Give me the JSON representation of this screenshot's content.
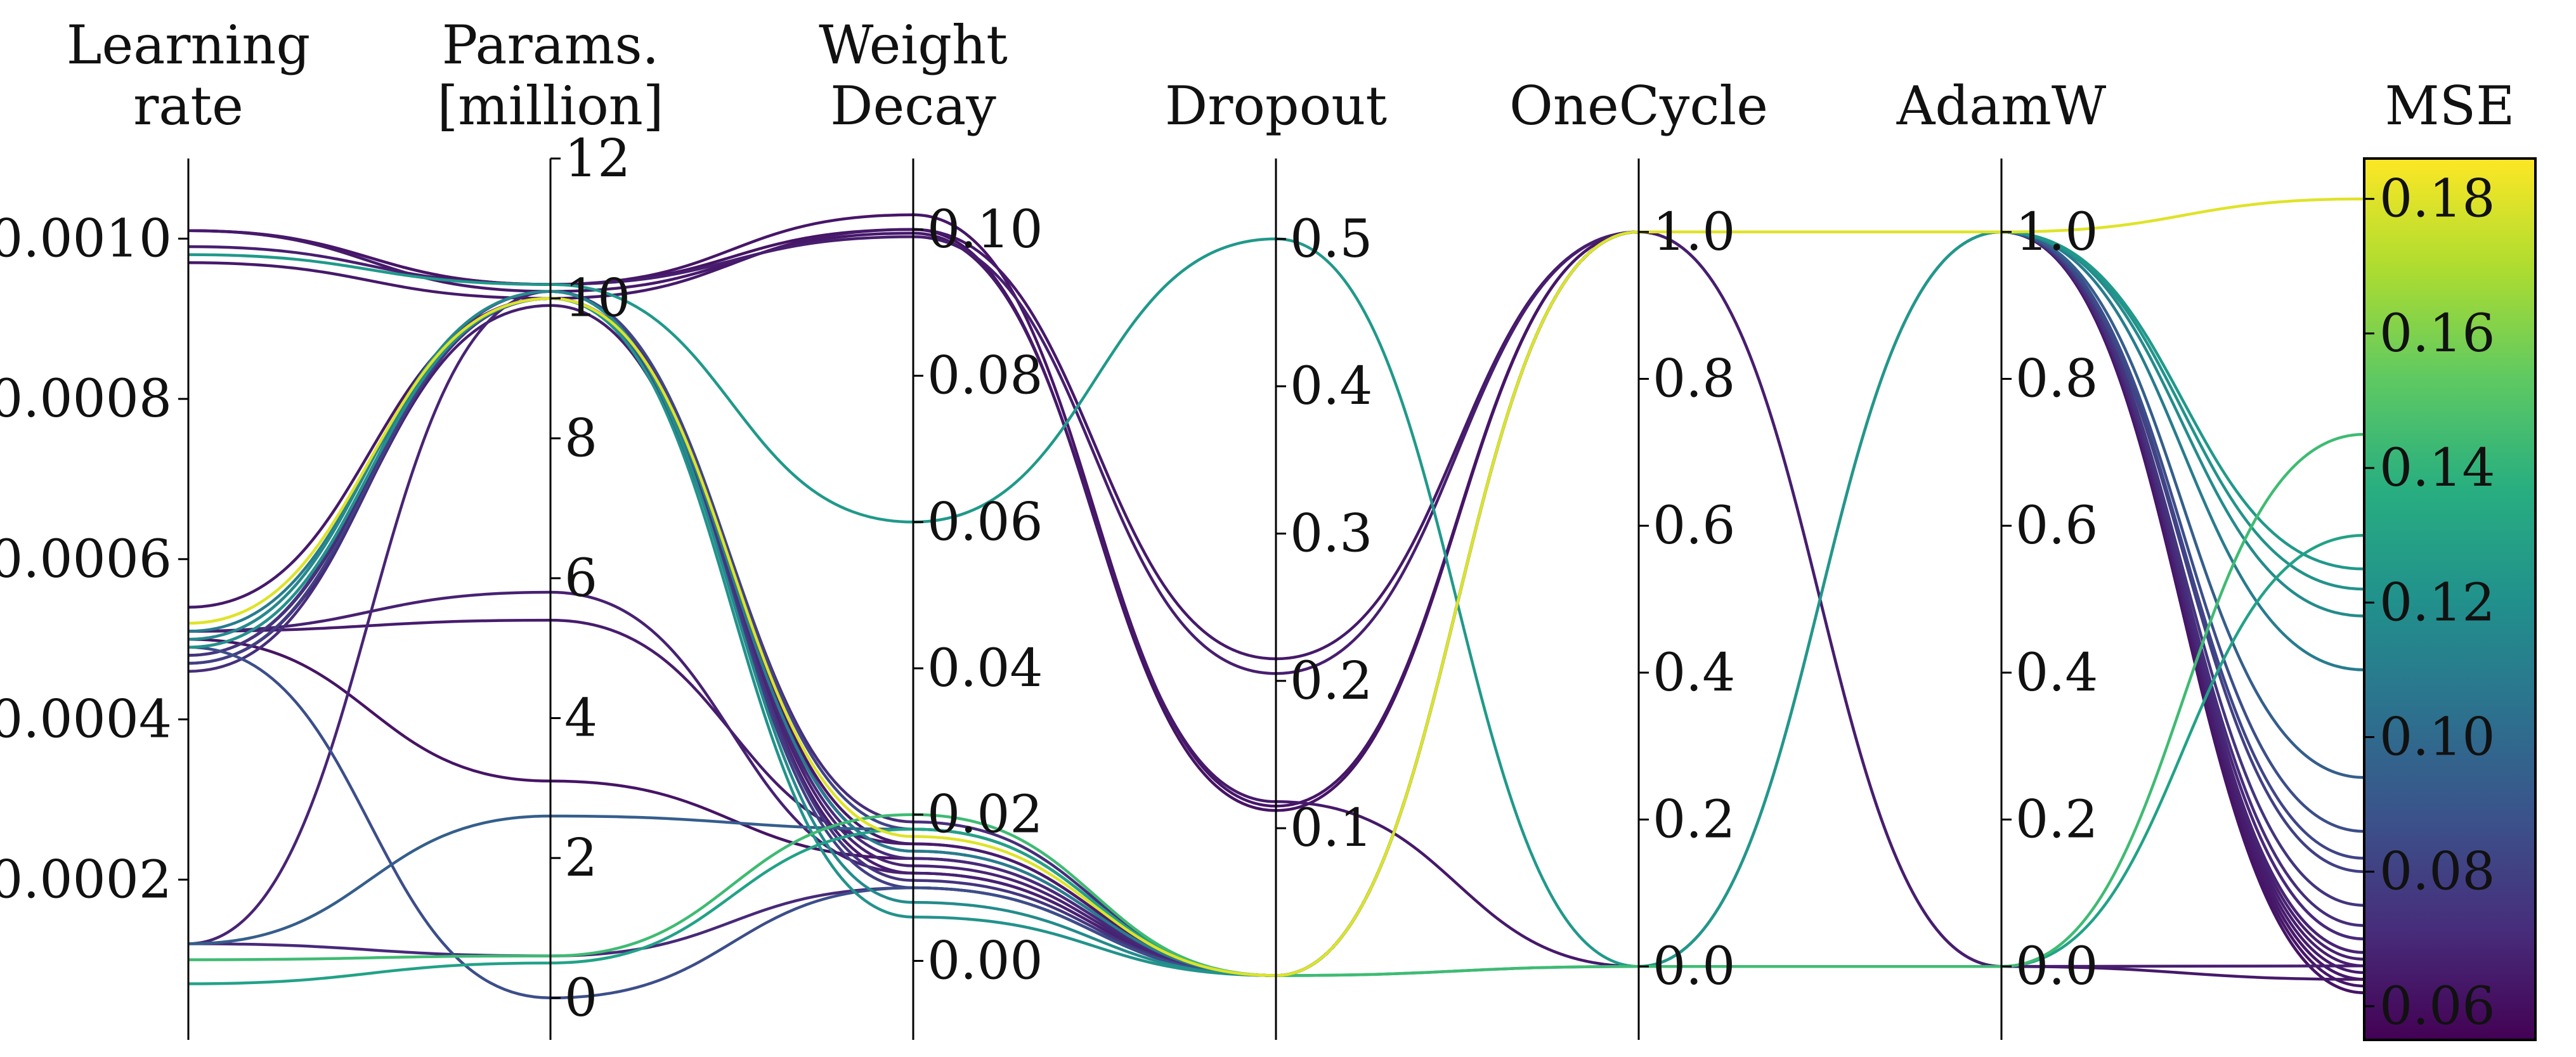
{
  "chart_data": {
    "type": "parallel_coordinates",
    "axes": [
      {
        "key": "lr",
        "title_lines": [
          "Learning",
          "rate"
        ],
        "range": [
          0.0,
          0.0011
        ],
        "ticks": [
          {
            "v": 0.0002,
            "label": "0.0002"
          },
          {
            "v": 0.0004,
            "label": "0.0004"
          },
          {
            "v": 0.0006,
            "label": "0.0006"
          },
          {
            "v": 0.0008,
            "label": "0.0008"
          },
          {
            "v": 0.001,
            "label": "0.0010"
          }
        ]
      },
      {
        "key": "params",
        "title_lines": [
          "Params.",
          "[million]"
        ],
        "range": [
          -0.6,
          12.0
        ],
        "ticks": [
          {
            "v": 0,
            "label": "0"
          },
          {
            "v": 2,
            "label": "2"
          },
          {
            "v": 4,
            "label": "4"
          },
          {
            "v": 6,
            "label": "6"
          },
          {
            "v": 8,
            "label": "8"
          },
          {
            "v": 10,
            "label": "10"
          },
          {
            "v": 12,
            "label": "12"
          }
        ]
      },
      {
        "key": "wd",
        "title_lines": [
          "Weight",
          "Decay"
        ],
        "range": [
          -0.0108,
          0.1097
        ],
        "ticks": [
          {
            "v": 0.0,
            "label": "0.00"
          },
          {
            "v": 0.02,
            "label": "0.02"
          },
          {
            "v": 0.04,
            "label": "0.04"
          },
          {
            "v": 0.06,
            "label": "0.06"
          },
          {
            "v": 0.08,
            "label": "0.08"
          },
          {
            "v": 0.1,
            "label": "0.10"
          }
        ]
      },
      {
        "key": "dropout",
        "title_lines": [
          "Dropout"
        ],
        "range": [
          -0.0437,
          0.5546
        ],
        "ticks": [
          {
            "v": 0.1,
            "label": "0.1"
          },
          {
            "v": 0.2,
            "label": "0.2"
          },
          {
            "v": 0.3,
            "label": "0.3"
          },
          {
            "v": 0.4,
            "label": "0.4"
          },
          {
            "v": 0.5,
            "label": "0.5"
          }
        ]
      },
      {
        "key": "onecycle",
        "title_lines": [
          "OneCycle"
        ],
        "range": [
          -0.1,
          1.1
        ],
        "ticks": [
          {
            "v": 0.0,
            "label": "0.0"
          },
          {
            "v": 0.2,
            "label": "0.2"
          },
          {
            "v": 0.4,
            "label": "0.4"
          },
          {
            "v": 0.6,
            "label": "0.6"
          },
          {
            "v": 0.8,
            "label": "0.8"
          },
          {
            "v": 1.0,
            "label": "1.0"
          }
        ]
      },
      {
        "key": "adamw",
        "title_lines": [
          "AdamW"
        ],
        "range": [
          -0.1,
          1.1
        ],
        "ticks": [
          {
            "v": 0.0,
            "label": "0.0"
          },
          {
            "v": 0.2,
            "label": "0.2"
          },
          {
            "v": 0.4,
            "label": "0.4"
          },
          {
            "v": 0.6,
            "label": "0.6"
          },
          {
            "v": 0.8,
            "label": "0.8"
          },
          {
            "v": 1.0,
            "label": "1.0"
          }
        ]
      },
      {
        "key": "mse",
        "title_lines": [
          "MSE"
        ],
        "range": [
          0.055,
          0.186
        ],
        "ticks": []
      }
    ],
    "colorbar": {
      "colormap": "viridis",
      "range": [
        0.055,
        0.186
      ],
      "ticks": [
        {
          "v": 0.06,
          "label": "0.06"
        },
        {
          "v": 0.08,
          "label": "0.08"
        },
        {
          "v": 0.1,
          "label": "0.10"
        },
        {
          "v": 0.12,
          "label": "0.12"
        },
        {
          "v": 0.14,
          "label": "0.14"
        },
        {
          "v": 0.16,
          "label": "0.16"
        },
        {
          "v": 0.18,
          "label": "0.18"
        }
      ]
    },
    "runs": [
      {
        "lr": 0.00101,
        "params": 10.2,
        "wd": 0.1,
        "dropout": 0.112,
        "onecycle": 1.0,
        "adamw": 1.0,
        "mse": 0.062
      },
      {
        "lr": 0.00101,
        "params": 10.2,
        "wd": 0.102,
        "dropout": 0.115,
        "onecycle": 1.0,
        "adamw": 1.0,
        "mse": 0.063
      },
      {
        "lr": 0.00101,
        "params": 10.1,
        "wd": 0.0995,
        "dropout": 0.118,
        "onecycle": 0.0,
        "adamw": 1.0,
        "mse": 0.064
      },
      {
        "lr": 0.00099,
        "params": 10.2,
        "wd": 0.099,
        "dropout": 0.205,
        "onecycle": 1.0,
        "adamw": 0.0,
        "mse": 0.066
      },
      {
        "lr": 0.00097,
        "params": 10.0,
        "wd": 0.1,
        "dropout": 0.215,
        "onecycle": 1.0,
        "adamw": 0.0,
        "mse": 0.064
      },
      {
        "lr": 0.00098,
        "params": 10.2,
        "wd": 0.06,
        "dropout": 0.5,
        "onecycle": 0.0,
        "adamw": 1.0,
        "mse": 0.125
      },
      {
        "lr": 0.00054,
        "params": 10.0,
        "wd": 0.016,
        "dropout": 0.0,
        "onecycle": 1.0,
        "adamw": 1.0,
        "mse": 0.064
      },
      {
        "lr": 0.00052,
        "params": 10.0,
        "wd": 0.017,
        "dropout": 0.0,
        "onecycle": 1.0,
        "adamw": 1.0,
        "mse": 0.18
      },
      {
        "lr": 0.00051,
        "params": 10.0,
        "wd": 0.015,
        "dropout": 0.0,
        "onecycle": 1.0,
        "adamw": 1.0,
        "mse": 0.11
      },
      {
        "lr": 0.0005,
        "params": 10.1,
        "wd": 0.018,
        "dropout": 0.0,
        "onecycle": 1.0,
        "adamw": 1.0,
        "mse": 0.082
      },
      {
        "lr": 0.00049,
        "params": 10.0,
        "wd": 0.014,
        "dropout": 0.0,
        "onecycle": 1.0,
        "adamw": 1.0,
        "mse": 0.07
      },
      {
        "lr": 0.00048,
        "params": 10.0,
        "wd": 0.013,
        "dropout": 0.0,
        "onecycle": 1.0,
        "adamw": 1.0,
        "mse": 0.068
      },
      {
        "lr": 0.00047,
        "params": 9.9,
        "wd": 0.012,
        "dropout": 0.0,
        "onecycle": 1.0,
        "adamw": 1.0,
        "mse": 0.066
      },
      {
        "lr": 0.00046,
        "params": 10.0,
        "wd": 0.019,
        "dropout": 0.0,
        "onecycle": 1.0,
        "adamw": 1.0,
        "mse": 0.072
      },
      {
        "lr": 0.0005,
        "params": 10.1,
        "wd": 0.008,
        "dropout": 0.0,
        "onecycle": 1.0,
        "adamw": 1.0,
        "mse": 0.118
      },
      {
        "lr": 0.00049,
        "params": 10.0,
        "wd": 0.006,
        "dropout": 0.0,
        "onecycle": 1.0,
        "adamw": 1.0,
        "mse": 0.122
      },
      {
        "lr": 0.00048,
        "params": 10.1,
        "wd": 0.011,
        "dropout": 0.0,
        "onecycle": 1.0,
        "adamw": 1.0,
        "mse": 0.075
      },
      {
        "lr": 0.00047,
        "params": 10.0,
        "wd": 0.01,
        "dropout": 0.0,
        "onecycle": 1.0,
        "adamw": 1.0,
        "mse": 0.08
      },
      {
        "lr": 0.00051,
        "params": 5.8,
        "wd": 0.012,
        "dropout": 0.0,
        "onecycle": 1.0,
        "adamw": 1.0,
        "mse": 0.067
      },
      {
        "lr": 0.00051,
        "params": 5.4,
        "wd": 0.016,
        "dropout": 0.0,
        "onecycle": 1.0,
        "adamw": 1.0,
        "mse": 0.065
      },
      {
        "lr": 0.0005,
        "params": 3.1,
        "wd": 0.014,
        "dropout": 0.0,
        "onecycle": 1.0,
        "adamw": 1.0,
        "mse": 0.062
      },
      {
        "lr": 0.00049,
        "params": 0.0,
        "wd": 0.01,
        "dropout": 0.0,
        "onecycle": 1.0,
        "adamw": 1.0,
        "mse": 0.086
      },
      {
        "lr": 0.00012,
        "params": 10.1,
        "wd": 0.015,
        "dropout": 0.0,
        "onecycle": 1.0,
        "adamw": 1.0,
        "mse": 0.068
      },
      {
        "lr": 0.00012,
        "params": 2.6,
        "wd": 0.018,
        "dropout": 0.0,
        "onecycle": 1.0,
        "adamw": 1.0,
        "mse": 0.094
      },
      {
        "lr": 0.00012,
        "params": 0.6,
        "wd": 0.01,
        "dropout": 0.0,
        "onecycle": 1.0,
        "adamw": 1.0,
        "mse": 0.07
      },
      {
        "lr": 0.0001,
        "params": 0.6,
        "wd": 0.02,
        "dropout": 0.0,
        "onecycle": 0.0,
        "adamw": 0.0,
        "mse": 0.145
      },
      {
        "lr": 7e-05,
        "params": 0.5,
        "wd": 0.018,
        "dropout": 0.0,
        "onecycle": 0.0,
        "adamw": 0.0,
        "mse": 0.13
      }
    ]
  }
}
